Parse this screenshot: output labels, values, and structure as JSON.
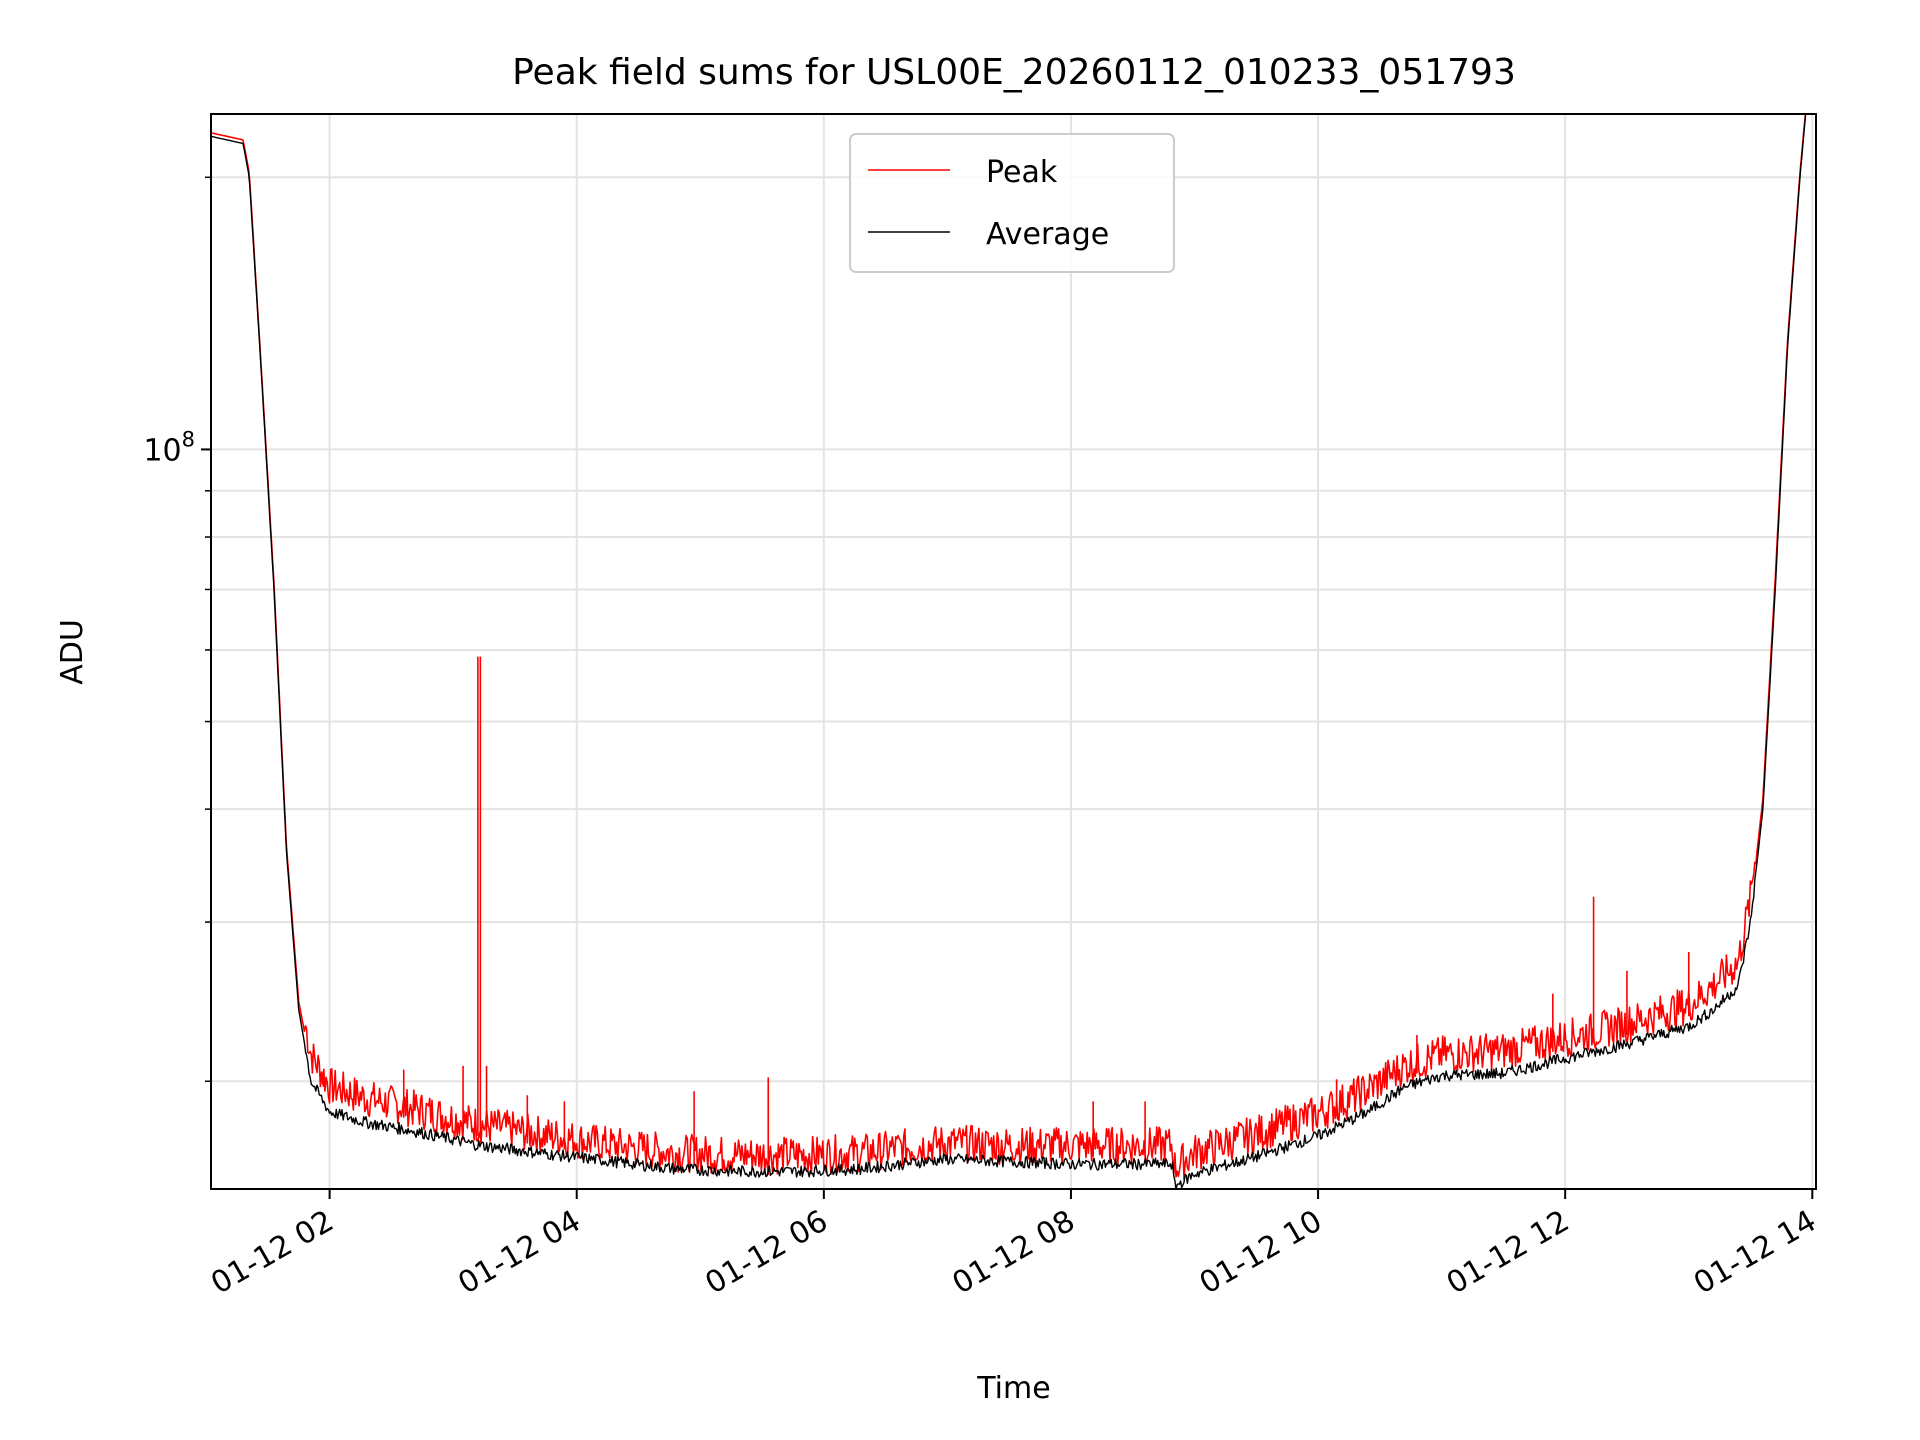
{
  "chart_data": {
    "type": "line",
    "title": "Peak field sums for USL00E_20260112_010233_051793",
    "xlabel": "Time",
    "ylabel": "ADU",
    "yscale": "log",
    "xlim_hours": [
      1.04,
      14.03
    ],
    "ylim": [
      15200000,
      235000000
    ],
    "x_ticks": [
      {
        "value": 2,
        "label": "01-12 02"
      },
      {
        "value": 4,
        "label": "01-12 04"
      },
      {
        "value": 6,
        "label": "01-12 06"
      },
      {
        "value": 8,
        "label": "01-12 08"
      },
      {
        "value": 10,
        "label": "01-12 10"
      },
      {
        "value": 12,
        "label": "01-12 12"
      },
      {
        "value": 14,
        "label": "01-12 14"
      }
    ],
    "y_major_ticks": [
      {
        "value": 100000000,
        "base": "10",
        "exp": "8"
      }
    ],
    "y_minor_ticks": [
      20000000,
      30000000,
      40000000,
      50000000,
      60000000,
      70000000,
      80000000,
      90000000,
      200000000
    ],
    "grid": true,
    "legend": {
      "position": "upper-center",
      "entries": [
        {
          "label": "Peak",
          "color": "#ff0000"
        },
        {
          "label": "Average",
          "color": "#000000"
        }
      ]
    },
    "series": [
      {
        "name": "Average",
        "color": "#000000",
        "x": [
          1.04,
          1.3,
          1.35,
          1.45,
          1.55,
          1.65,
          1.75,
          1.85,
          2.0,
          2.3,
          2.7,
          3.2,
          3.8,
          4.3,
          4.8,
          5.3,
          5.8,
          6.3,
          6.8,
          7.0,
          7.5,
          8.0,
          8.5,
          8.82,
          8.84,
          9.0,
          9.5,
          10.0,
          10.4,
          10.7,
          11.0,
          11.5,
          12.0,
          12.5,
          13.0,
          13.2,
          13.4,
          13.5,
          13.6,
          13.7,
          13.8,
          13.9,
          13.95
        ],
        "y": [
          222000000,
          218000000,
          200000000,
          120000000,
          70000000,
          36000000,
          24000000,
          20000000,
          18500000,
          18000000,
          17600000,
          17000000,
          16600000,
          16300000,
          16000000,
          15900000,
          15900000,
          16000000,
          16300000,
          16400000,
          16300000,
          16200000,
          16200000,
          16200000,
          15300000,
          15800000,
          16500000,
          17400000,
          18500000,
          19700000,
          20300000,
          20400000,
          21200000,
          22000000,
          23000000,
          24000000,
          25500000,
          30000000,
          40000000,
          70000000,
          130000000,
          200000000,
          238000000
        ]
      },
      {
        "name": "Peak",
        "color": "#ff0000",
        "x": [
          1.04,
          1.3,
          1.35,
          1.45,
          1.55,
          1.65,
          1.75,
          1.85,
          2.0,
          2.3,
          2.7,
          3.2,
          3.8,
          4.3,
          4.8,
          5.3,
          5.8,
          6.3,
          6.8,
          7.0,
          7.5,
          8.0,
          8.5,
          8.82,
          8.84,
          9.0,
          9.5,
          10.0,
          10.4,
          10.7,
          11.0,
          11.5,
          12.0,
          12.5,
          13.0,
          13.2,
          13.4,
          13.5,
          13.6,
          13.7,
          13.8,
          13.9,
          13.95
        ],
        "y": [
          224000000,
          220000000,
          202000000,
          121000000,
          71000000,
          36500000,
          24500000,
          20800000,
          19200000,
          18600000,
          18100000,
          17400000,
          16900000,
          16500000,
          16200000,
          16100000,
          16100000,
          16200000,
          16500000,
          16600000,
          16500000,
          16500000,
          16500000,
          16500000,
          15600000,
          16200000,
          17000000,
          17900000,
          19000000,
          20200000,
          20800000,
          21000000,
          21700000,
          22500000,
          23600000,
          24800000,
          26300000,
          31000000,
          41000000,
          72000000,
          132000000,
          202000000,
          240000000
        ],
        "spikes": [
          {
            "x": 1.95,
            "y": 20500000
          },
          {
            "x": 2.6,
            "y": 20600000
          },
          {
            "x": 3.08,
            "y": 20800000
          },
          {
            "x": 3.2,
            "y": 59000000
          },
          {
            "x": 3.22,
            "y": 59000000
          },
          {
            "x": 3.27,
            "y": 20800000
          },
          {
            "x": 3.6,
            "y": 19300000
          },
          {
            "x": 3.9,
            "y": 19000000
          },
          {
            "x": 4.95,
            "y": 19500000
          },
          {
            "x": 5.55,
            "y": 20200000
          },
          {
            "x": 8.18,
            "y": 19000000
          },
          {
            "x": 8.6,
            "y": 19000000
          },
          {
            "x": 10.15,
            "y": 20100000
          },
          {
            "x": 10.8,
            "y": 22500000
          },
          {
            "x": 11.9,
            "y": 25000000
          },
          {
            "x": 12.23,
            "y": 32000000
          },
          {
            "x": 12.5,
            "y": 26500000
          },
          {
            "x": 13.0,
            "y": 27800000
          }
        ]
      }
    ]
  }
}
